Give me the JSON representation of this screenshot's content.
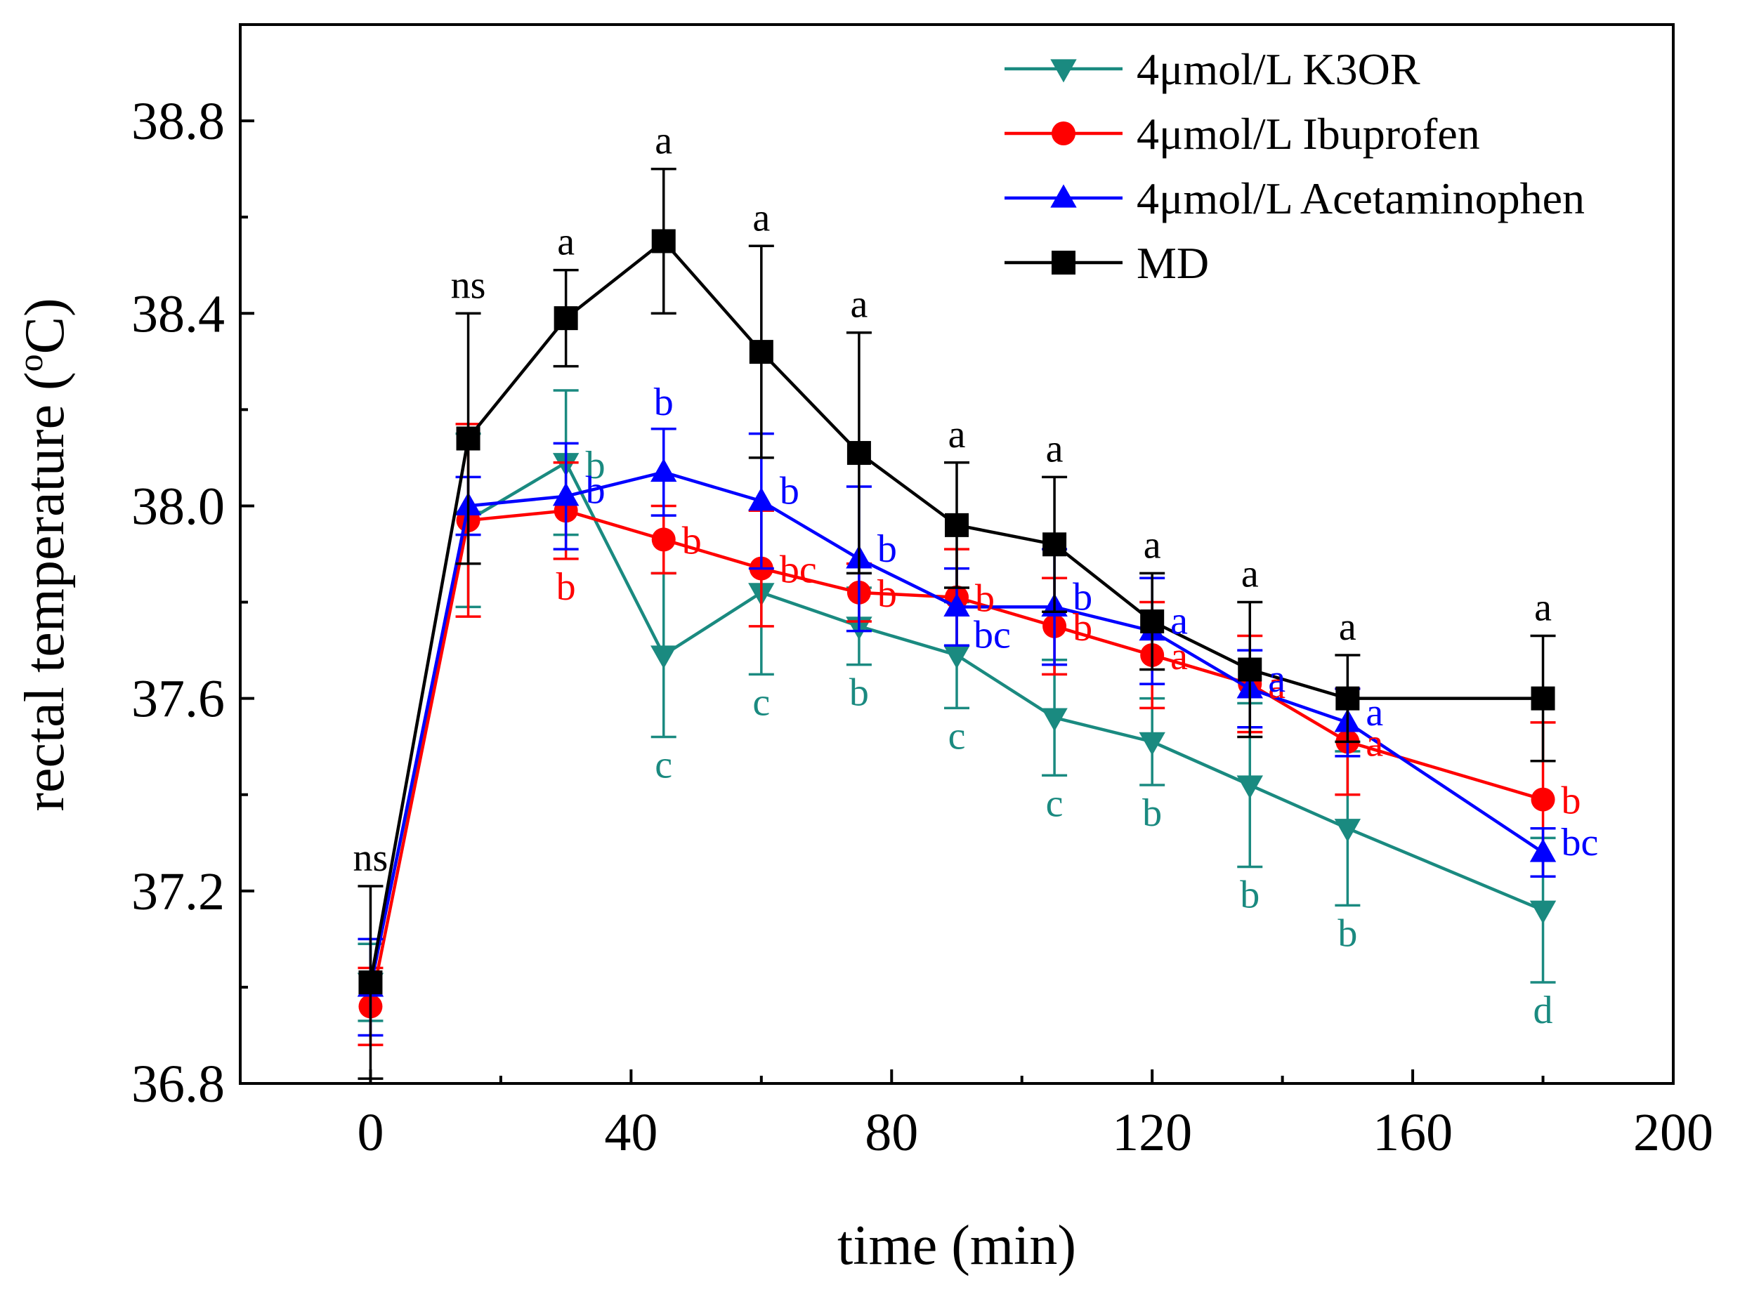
{
  "chart_data": {
    "type": "line",
    "title": "",
    "xlabel": "time (min)",
    "ylabel": "rectal temperature (",
    "ylabel_sup": "o",
    "ylabel_tail": "C)",
    "xlim": [
      -20,
      200
    ],
    "ylim": [
      36.8,
      39.0
    ],
    "xticks": [
      0,
      40,
      80,
      120,
      160,
      200
    ],
    "xtick_labels": [
      "0",
      "40",
      "80",
      "120",
      "160",
      "200"
    ],
    "yticks": [
      36.8,
      37.2,
      37.6,
      38.0,
      38.4,
      38.8
    ],
    "ytick_labels": [
      "36.8",
      "37.2",
      "37.6",
      "38.0",
      "38.4",
      "38.8"
    ],
    "grid": false,
    "legend_position": "top-right",
    "x": [
      0,
      15,
      30,
      45,
      60,
      75,
      90,
      105,
      120,
      135,
      150,
      180
    ],
    "series": [
      {
        "name": "4μmol/L K3OR",
        "color": "#1a8a80",
        "marker": "triangle-down",
        "values": [
          37.01,
          37.97,
          38.09,
          37.69,
          37.82,
          37.75,
          37.69,
          37.56,
          37.51,
          37.42,
          37.33,
          37.16
        ],
        "errors": [
          0.08,
          0.18,
          0.15,
          0.17,
          0.17,
          0.08,
          0.11,
          0.12,
          0.09,
          0.17,
          0.16,
          0.15
        ],
        "labels": [
          "",
          "",
          "b",
          "c",
          "c",
          "b",
          "c",
          "c",
          "b",
          "b",
          "b",
          "d"
        ]
      },
      {
        "name": "4μmol/L Ibuprofen",
        "color": "#ff0000",
        "marker": "circle",
        "values": [
          36.96,
          37.97,
          37.99,
          37.93,
          37.87,
          37.82,
          37.81,
          37.75,
          37.69,
          37.63,
          37.51,
          37.39
        ],
        "errors": [
          0.08,
          0.2,
          0.1,
          0.07,
          0.12,
          0.06,
          0.1,
          0.1,
          0.11,
          0.1,
          0.11,
          0.16
        ],
        "labels": [
          "",
          "",
          "b",
          "b",
          "bc",
          "b",
          "b",
          "b",
          "a",
          "a",
          "a",
          "b"
        ]
      },
      {
        "name": "4μmol/L Acetaminophen",
        "color": "#0000ff",
        "marker": "triangle-up",
        "values": [
          37.0,
          38.0,
          38.02,
          38.07,
          38.01,
          37.89,
          37.79,
          37.79,
          37.74,
          37.62,
          37.55,
          37.28
        ],
        "errors": [
          0.1,
          0.06,
          0.11,
          0.09,
          0.14,
          0.15,
          0.08,
          0.12,
          0.11,
          0.08,
          0.07,
          0.05
        ],
        "labels": [
          "",
          "",
          "b",
          "b",
          "b",
          "b",
          "bc",
          "b",
          "a",
          "a",
          "a",
          "bc"
        ]
      },
      {
        "name": "MD",
        "color": "#000000",
        "marker": "square",
        "values": [
          37.01,
          38.14,
          38.39,
          38.55,
          38.32,
          38.11,
          37.96,
          37.92,
          37.76,
          37.66,
          37.6,
          37.6
        ],
        "errors": [
          0.2,
          0.26,
          0.1,
          0.15,
          0.22,
          0.25,
          0.13,
          0.14,
          0.1,
          0.14,
          0.09,
          0.13
        ],
        "labels": [
          "ns",
          "ns",
          "a",
          "a",
          "a",
          "a",
          "a",
          "a",
          "a",
          "a",
          "a",
          "a"
        ]
      }
    ]
  }
}
